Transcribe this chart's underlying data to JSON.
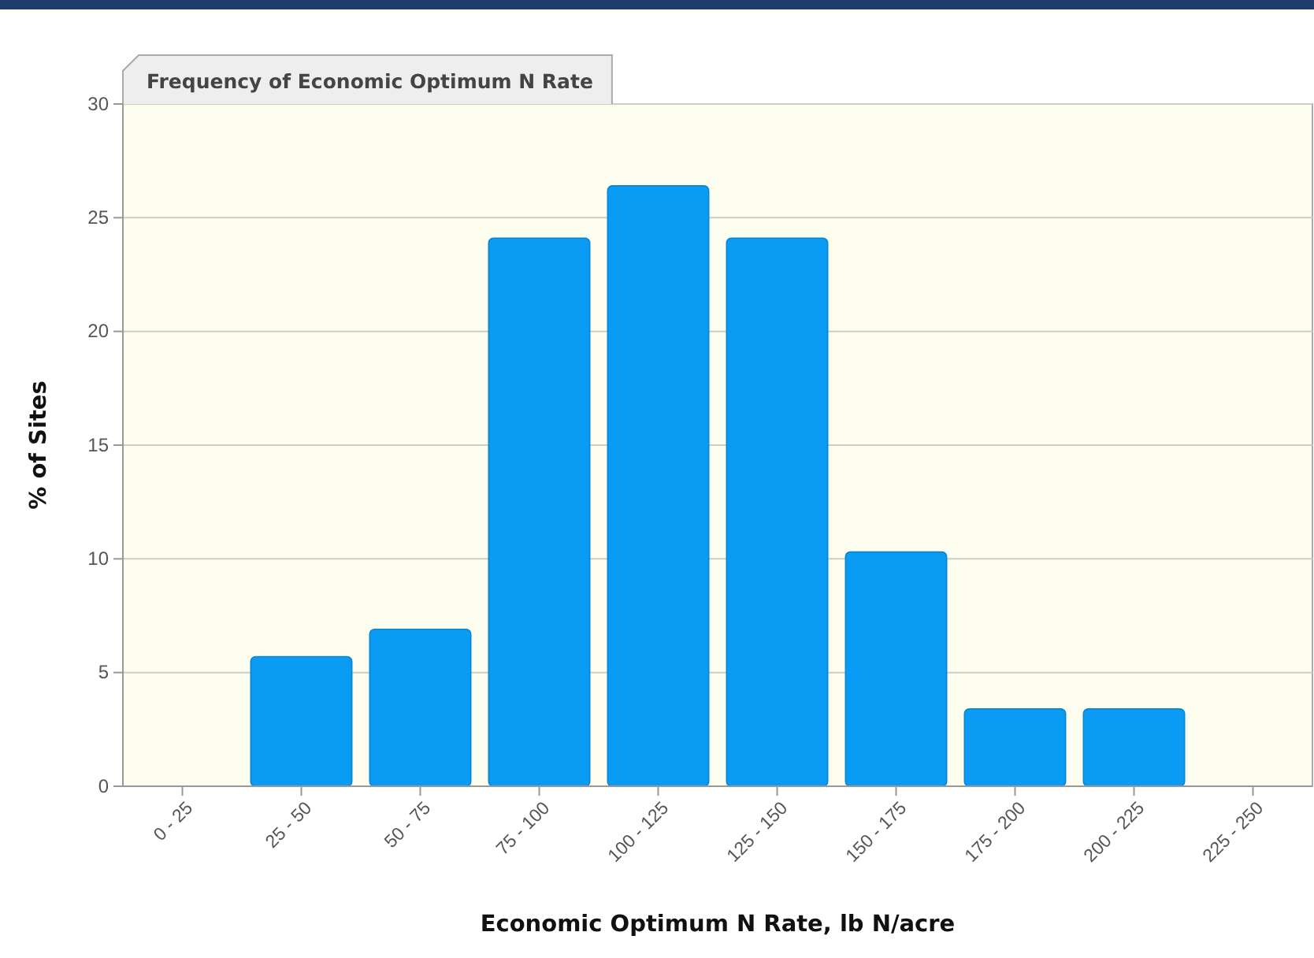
{
  "chart_data": {
    "type": "bar",
    "title": "Frequency of Economic Optimum N Rate",
    "xlabel": "Economic Optimum N Rate, lb N/acre",
    "ylabel": "% of Sites",
    "categories": [
      "0 - 25",
      "25 - 50",
      "50 - 75",
      "75 - 100",
      "100 - 125",
      "125 - 150",
      "150 - 175",
      "175 - 200",
      "200 - 225",
      "225 - 250"
    ],
    "values": [
      0,
      5.7,
      6.9,
      24.1,
      26.4,
      24.1,
      10.3,
      3.4,
      3.4,
      0
    ],
    "color": "#0a9cf5",
    "ylim": [
      0,
      30
    ],
    "yticks": [
      0,
      5,
      10,
      15,
      20,
      25,
      30
    ],
    "grid": "y"
  }
}
